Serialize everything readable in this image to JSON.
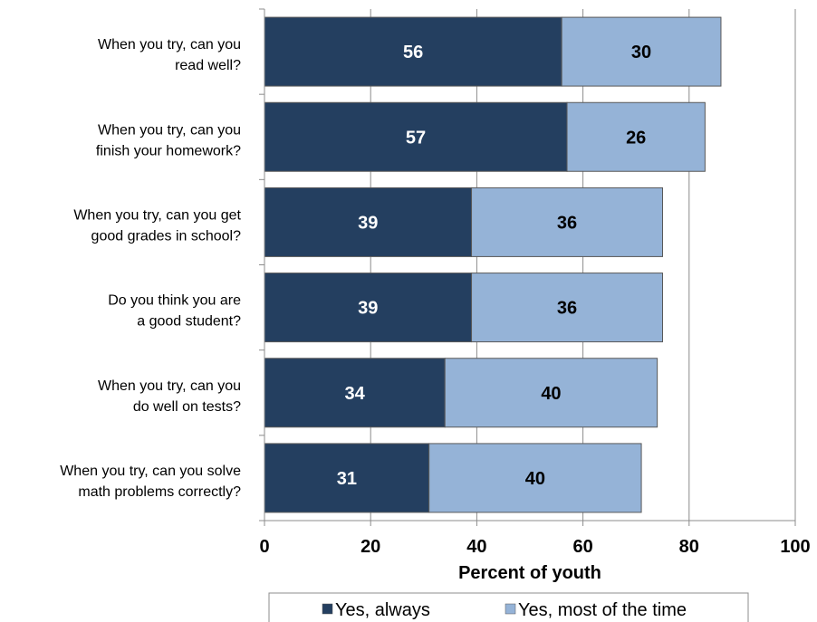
{
  "chart_data": {
    "type": "bar",
    "orientation": "horizontal",
    "stacked": true,
    "categories": [
      "When you try, can you read well?",
      "When you try, can you finish your homework?",
      "When you try, can you get good grades in school?",
      "Do you think you are a good student?",
      "When you try, can you do well on tests?",
      "When you try, can you solve math problems correctly?"
    ],
    "category_lines": [
      [
        "When you try, can you",
        "read well?"
      ],
      [
        "When you try, can you",
        "finish your homework?"
      ],
      [
        "When you try, can you get",
        "good grades in school?"
      ],
      [
        "Do you think you are",
        "a good student?"
      ],
      [
        "When you try, can you",
        "do well on tests?"
      ],
      [
        "When you try, can you solve",
        "math problems correctly?"
      ]
    ],
    "series": [
      {
        "name": "Yes, always",
        "values": [
          56,
          57,
          39,
          39,
          34,
          31
        ],
        "color": "#243f60",
        "label_color": "#ffffff"
      },
      {
        "name": "Yes, most of the time",
        "values": [
          30,
          26,
          36,
          36,
          40,
          40
        ],
        "color": "#95b3d7",
        "label_color": "#000000"
      }
    ],
    "xlabel": "Percent of youth",
    "ylabel": "",
    "xlim": [
      0,
      100
    ],
    "x_ticks": [
      0,
      20,
      40,
      60,
      80,
      100
    ],
    "grid": true,
    "legend_position": "bottom"
  }
}
